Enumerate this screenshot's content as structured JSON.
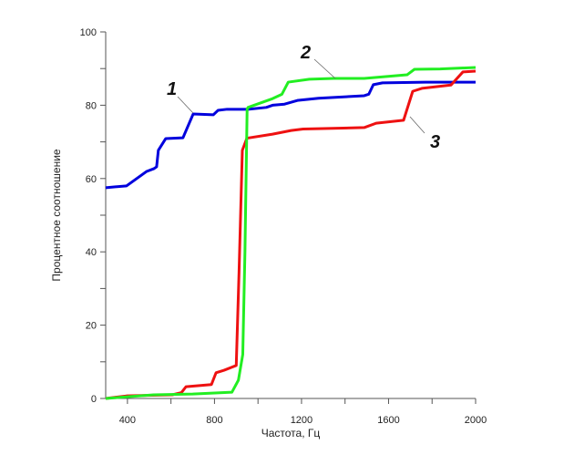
{
  "chart_data": {
    "type": "line",
    "title": "",
    "xlabel": "Частота, Гц",
    "ylabel": "Процентное соотношение",
    "xlim": [
      300,
      2000
    ],
    "ylim": [
      0,
      100
    ],
    "x_ticks": [
      400,
      800,
      1200,
      1600,
      2000
    ],
    "x_minor_step": 200,
    "y_ticks": [
      0,
      20,
      40,
      60,
      80,
      100
    ],
    "y_minor_step": 10,
    "grid": false,
    "series": [
      {
        "name": "1",
        "color": "#0000dd",
        "points": [
          [
            300,
            57.5
          ],
          [
            396,
            58
          ],
          [
            487,
            61.9
          ],
          [
            522,
            62.7
          ],
          [
            534,
            63.2
          ],
          [
            542,
            67.7
          ],
          [
            576,
            70.9
          ],
          [
            655,
            71.1
          ],
          [
            702,
            77.6
          ],
          [
            795,
            77.4
          ],
          [
            816,
            78.6
          ],
          [
            858,
            78.9
          ],
          [
            954,
            78.9
          ],
          [
            1038,
            79.4
          ],
          [
            1067,
            80
          ],
          [
            1122,
            80.3
          ],
          [
            1181,
            81.3
          ],
          [
            1278,
            81.9
          ],
          [
            1488,
            82.6
          ],
          [
            1509,
            83
          ],
          [
            1530,
            85.6
          ],
          [
            1572,
            86.1
          ],
          [
            1769,
            86.3
          ],
          [
            2000,
            86.3
          ]
        ]
      },
      {
        "name": "2",
        "color": "#22ee22",
        "points": [
          [
            300,
            0
          ],
          [
            520,
            1
          ],
          [
            700,
            1.2
          ],
          [
            880,
            1.7
          ],
          [
            910,
            5
          ],
          [
            930,
            12
          ],
          [
            940,
            40
          ],
          [
            950,
            78.9
          ],
          [
            954,
            79.4
          ],
          [
            1067,
            81.8
          ],
          [
            1110,
            83
          ],
          [
            1139,
            86.3
          ],
          [
            1236,
            87.1
          ],
          [
            1349,
            87.3
          ],
          [
            1488,
            87.3
          ],
          [
            1685,
            88.3
          ],
          [
            1719,
            89.8
          ],
          [
            1837,
            89.9
          ],
          [
            2000,
            90.3
          ]
        ]
      },
      {
        "name": "3",
        "color": "#ee1111",
        "points": [
          [
            300,
            0
          ],
          [
            396,
            0.7
          ],
          [
            606,
            1
          ],
          [
            648,
            1.6
          ],
          [
            669,
            3.2
          ],
          [
            786,
            3.8
          ],
          [
            807,
            7
          ],
          [
            844,
            7.7
          ],
          [
            900,
            9
          ],
          [
            913,
            34.8
          ],
          [
            928,
            67.7
          ],
          [
            949,
            71
          ],
          [
            1067,
            72.1
          ],
          [
            1152,
            73.1
          ],
          [
            1207,
            73.5
          ],
          [
            1488,
            73.9
          ],
          [
            1543,
            75.1
          ],
          [
            1669,
            75.9
          ],
          [
            1711,
            83.8
          ],
          [
            1753,
            84.6
          ],
          [
            1887,
            85.5
          ],
          [
            1942,
            89.1
          ],
          [
            2000,
            89.3
          ]
        ]
      }
    ],
    "annotations": [
      {
        "text": "1",
        "series": "1"
      },
      {
        "text": "2",
        "series": "2"
      },
      {
        "text": "3",
        "series": "3"
      }
    ]
  }
}
